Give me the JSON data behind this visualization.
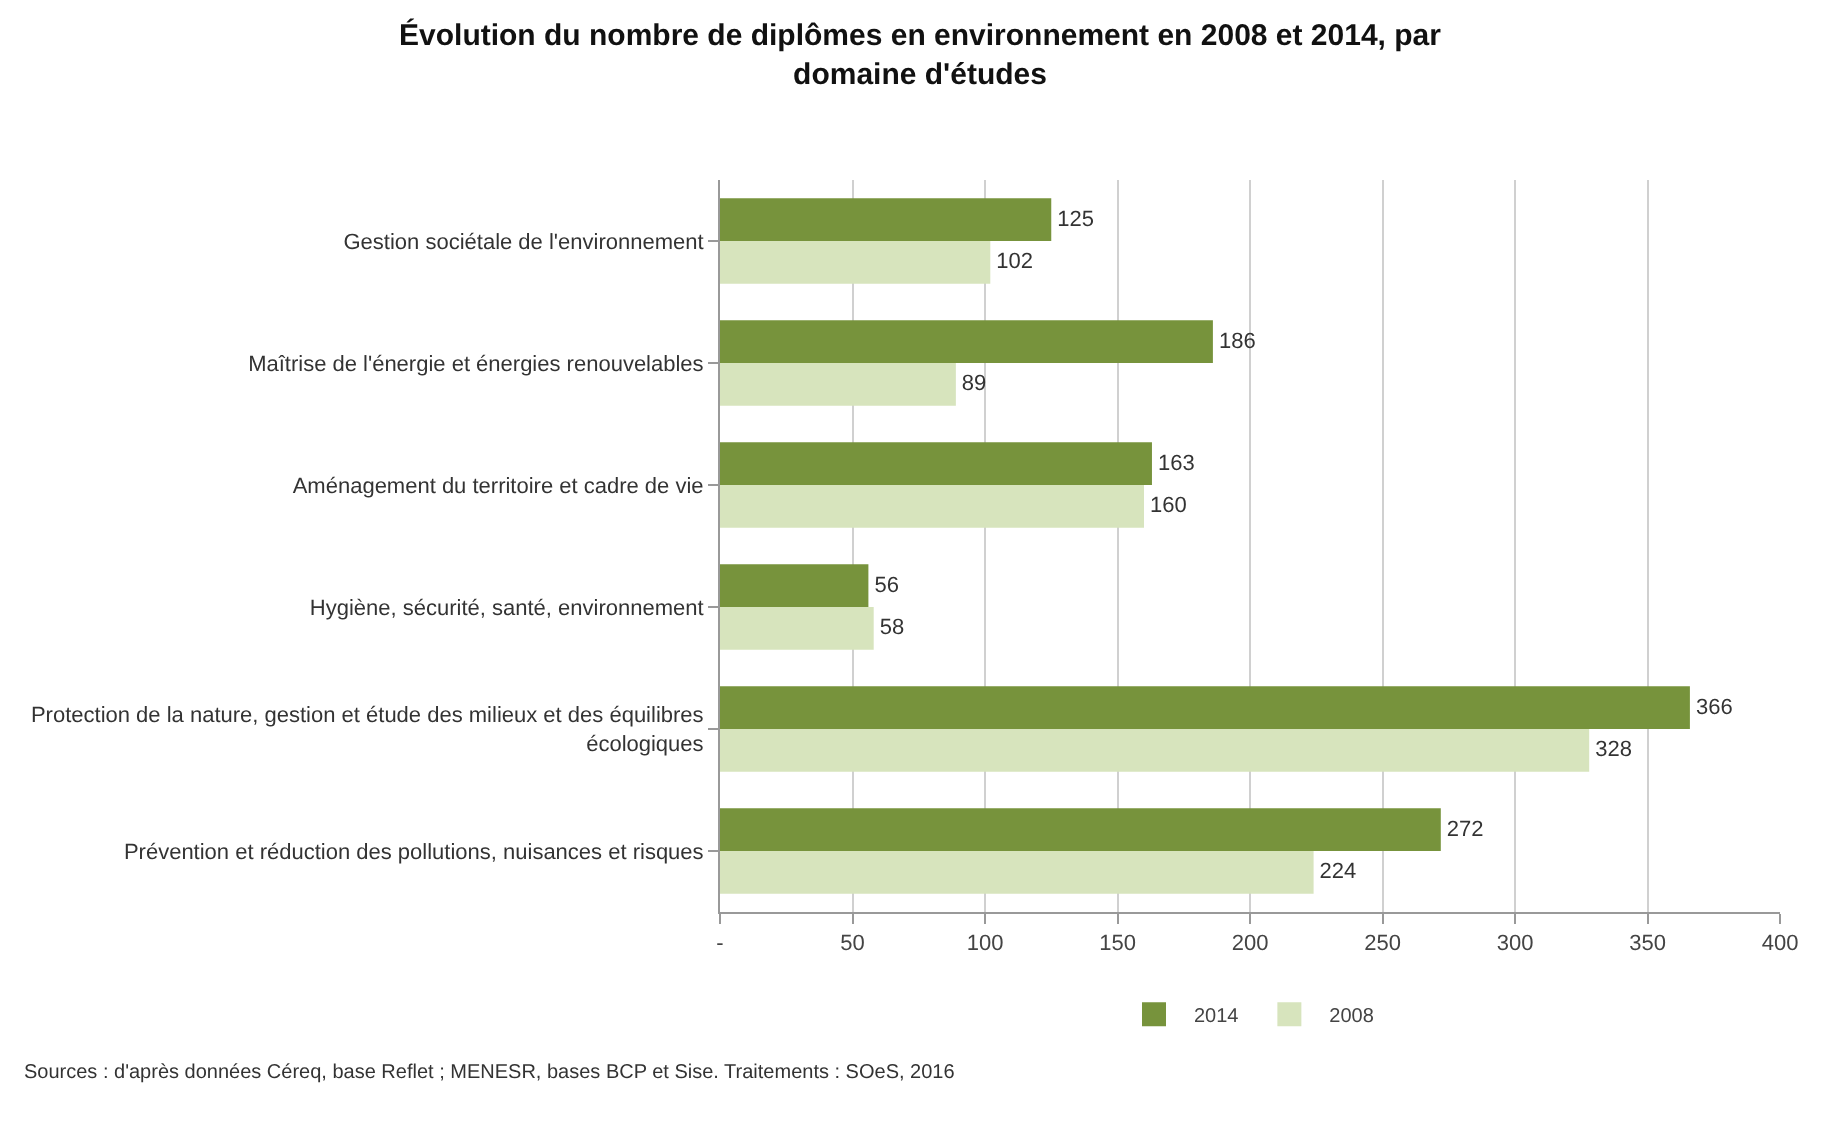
{
  "chart_data": {
    "type": "bar",
    "orientation": "horizontal",
    "title": "Évolution du nombre de diplômes en environnement en 2008 et 2014, par\ndomaine d'études",
    "categories": [
      "Gestion sociétale de l'environnement",
      "Maîtrise de l'énergie et énergies renouvelables",
      "Aménagement du territoire et cadre de vie",
      "Hygiène, sécurité, santé, environnement",
      "Protection de la nature, gestion et étude des milieux et des équilibres\nécologiques",
      "Prévention et réduction des pollutions, nuisances et risques"
    ],
    "series": [
      {
        "name": "2014",
        "color": "#77933c",
        "values": [
          125,
          186,
          163,
          56,
          366,
          272
        ]
      },
      {
        "name": "2008",
        "color": "#d7e4bd",
        "values": [
          102,
          89,
          160,
          58,
          328,
          224
        ]
      }
    ],
    "xlim": [
      0,
      400
    ],
    "xticks": [
      {
        "value": 0,
        "label": "-"
      },
      50,
      100,
      150,
      200,
      250,
      300,
      350,
      400
    ],
    "grid": "x",
    "legend": "bottom",
    "data_labels": true,
    "annotations": [
      "Sources : d'après données Céreq, base Reflet ; MENESR, bases BCP et Sise. Traitements : SOeS, 2016"
    ]
  }
}
